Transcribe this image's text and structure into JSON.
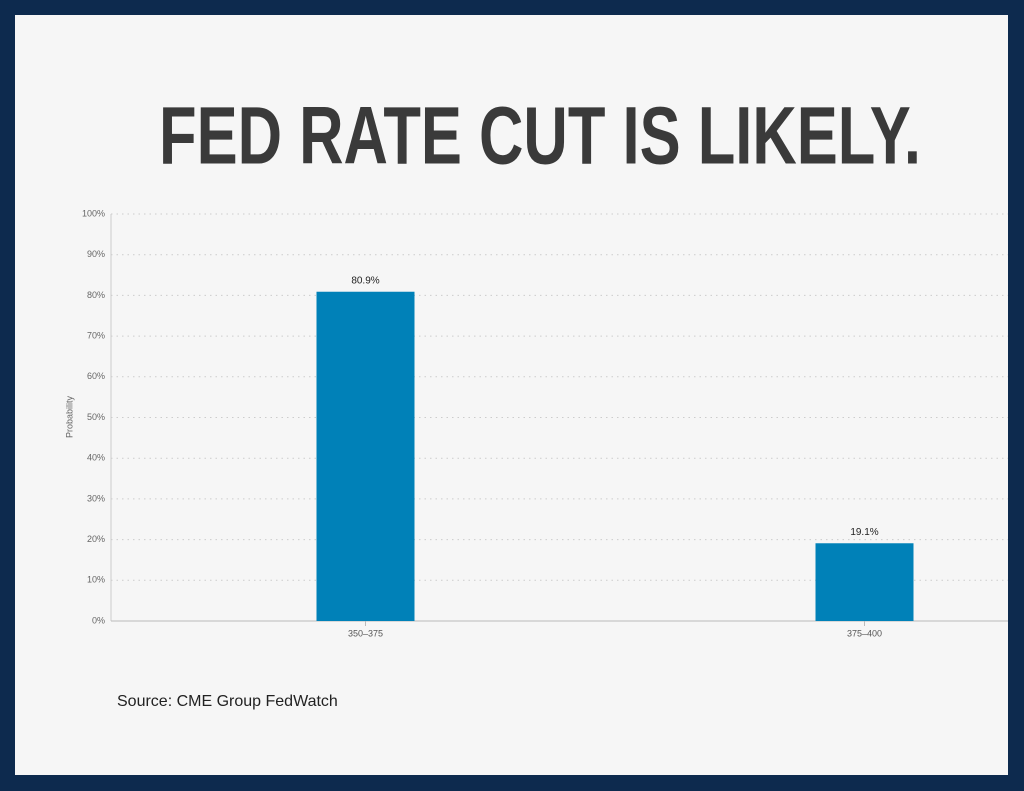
{
  "chart_data": {
    "type": "bar",
    "title": "FED RATE CUT IS LIKELY.",
    "y_label": "Probability",
    "categories": [
      "350–375",
      "375–400"
    ],
    "values": [
      80.9,
      19.1
    ],
    "value_labels": [
      "80.9%",
      "19.1%"
    ],
    "color": "#0081b8",
    "ylim": [
      0,
      100
    ],
    "yticks": [
      {
        "value": 0,
        "label": "0%"
      },
      {
        "value": 10,
        "label": "10%"
      },
      {
        "value": 20,
        "label": "20%"
      },
      {
        "value": 30,
        "label": "30%"
      },
      {
        "value": 40,
        "label": "40%"
      },
      {
        "value": 50,
        "label": "50%"
      },
      {
        "value": 60,
        "label": "60%"
      },
      {
        "value": 70,
        "label": "70%"
      },
      {
        "value": 80,
        "label": "80%"
      },
      {
        "value": 90,
        "label": "90%"
      },
      {
        "value": 100,
        "label": "100%"
      }
    ],
    "grid": true,
    "source": "Source: CME Group FedWatch"
  }
}
